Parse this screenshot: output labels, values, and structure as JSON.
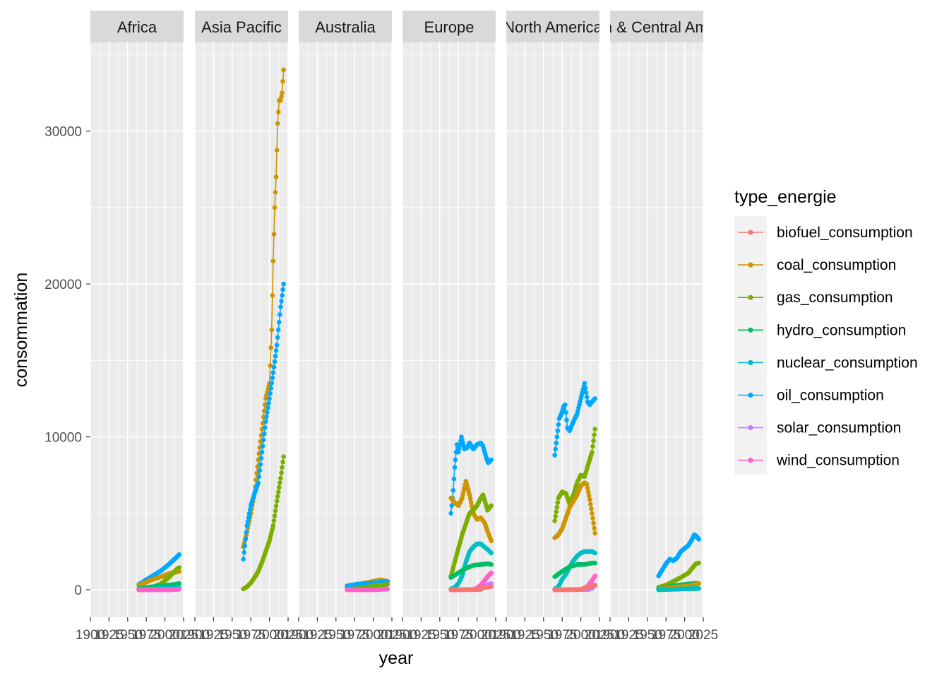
{
  "chart_data": {
    "type": "line",
    "facet_by": "region",
    "facets": [
      "Africa",
      "Asia Pacific",
      "Australia",
      "Europe",
      "North America",
      "South & Central America"
    ],
    "xlabel": "year",
    "ylabel": "consommation",
    "xlim": [
      1900,
      2025
    ],
    "ylim": [
      -1800,
      35800
    ],
    "x_ticks": [
      1900,
      1925,
      1950,
      1975,
      2000,
      2025
    ],
    "y_ticks": [
      0,
      10000,
      20000,
      30000
    ],
    "grid": true,
    "legend": {
      "title": "type_energie",
      "position": "right",
      "entries": [
        "biofuel_consumption",
        "coal_consumption",
        "gas_consumption",
        "hydro_consumption",
        "nuclear_consumption",
        "oil_consumption",
        "solar_consumption",
        "wind_consumption"
      ]
    },
    "colors": {
      "biofuel_consumption": "#F8766D",
      "coal_consumption": "#CD9600",
      "gas_consumption": "#7CAE00",
      "hydro_consumption": "#00BE67",
      "nuclear_consumption": "#00BFC4",
      "oil_consumption": "#00A9FF",
      "solar_consumption": "#C77CFF",
      "wind_consumption": "#FF61CC"
    },
    "series": [
      {
        "panel": "Africa",
        "name": "oil_consumption",
        "x": [
          1965,
          1975,
          1985,
          1995,
          2005,
          2015,
          2019
        ],
        "y": [
          350,
          650,
          950,
          1250,
          1650,
          2100,
          2300
        ]
      },
      {
        "panel": "Africa",
        "name": "coal_consumption",
        "x": [
          1965,
          1975,
          1985,
          1995,
          2005,
          2015,
          2019
        ],
        "y": [
          300,
          500,
          700,
          850,
          1050,
          1150,
          1200
        ]
      },
      {
        "panel": "Africa",
        "name": "gas_consumption",
        "x": [
          1965,
          1975,
          1985,
          1995,
          2005,
          2015,
          2019
        ],
        "y": [
          0,
          50,
          200,
          400,
          800,
          1300,
          1450
        ]
      },
      {
        "panel": "Africa",
        "name": "hydro_consumption",
        "x": [
          1965,
          1980,
          1995,
          2010,
          2019
        ],
        "y": [
          80,
          180,
          250,
          330,
          400
        ]
      },
      {
        "panel": "Africa",
        "name": "nuclear_consumption",
        "x": [
          1965,
          1985,
          2000,
          2019
        ],
        "y": [
          0,
          40,
          100,
          120
        ]
      },
      {
        "panel": "Africa",
        "name": "solar_consumption",
        "x": [
          1965,
          2010,
          2019
        ],
        "y": [
          0,
          0,
          40
        ]
      },
      {
        "panel": "Africa",
        "name": "wind_consumption",
        "x": [
          1965,
          2010,
          2019
        ],
        "y": [
          0,
          5,
          30
        ]
      },
      {
        "panel": "Asia Pacific",
        "name": "coal_consumption",
        "x": [
          1965,
          1970,
          1975,
          1980,
          1985,
          1990,
          1995,
          2000,
          2003,
          2005,
          2007,
          2009,
          2011,
          2013,
          2015,
          2017,
          2019
        ],
        "y": [
          2800,
          3800,
          5000,
          6300,
          8500,
          10500,
          12500,
          13500,
          17000,
          21500,
          25000,
          27000,
          30500,
          32000,
          32000,
          32500,
          34000
        ]
      },
      {
        "panel": "Asia Pacific",
        "name": "oil_consumption",
        "x": [
          1965,
          1970,
          1975,
          1980,
          1985,
          1990,
          1995,
          2000,
          2005,
          2010,
          2015,
          2019
        ],
        "y": [
          2000,
          4200,
          5500,
          6300,
          7000,
          9000,
          11000,
          12500,
          14200,
          16000,
          18500,
          20000
        ]
      },
      {
        "panel": "Asia Pacific",
        "name": "gas_consumption",
        "x": [
          1965,
          1970,
          1975,
          1980,
          1985,
          1990,
          1995,
          2000,
          2005,
          2010,
          2015,
          2019
        ],
        "y": [
          50,
          200,
          450,
          800,
          1200,
          1800,
          2500,
          3200,
          4200,
          5800,
          7300,
          8700
        ]
      },
      {
        "panel": "Australia",
        "name": "coal_consumption",
        "x": [
          1965,
          1980,
          1995,
          2010,
          2019
        ],
        "y": [
          250,
          350,
          500,
          650,
          550
        ]
      },
      {
        "panel": "Australia",
        "name": "oil_consumption",
        "x": [
          1965,
          1980,
          1995,
          2010,
          2019
        ],
        "y": [
          250,
          380,
          420,
          500,
          550
        ]
      },
      {
        "panel": "Australia",
        "name": "gas_consumption",
        "x": [
          1965,
          1980,
          1995,
          2010,
          2019
        ],
        "y": [
          0,
          100,
          200,
          300,
          350
        ]
      },
      {
        "panel": "Australia",
        "name": "hydro_consumption",
        "x": [
          1965,
          2019
        ],
        "y": [
          40,
          50
        ]
      },
      {
        "panel": "Australia",
        "name": "wind_consumption",
        "x": [
          1965,
          2005,
          2019
        ],
        "y": [
          0,
          0,
          60
        ]
      },
      {
        "panel": "Europe",
        "name": "oil_consumption",
        "x": [
          1965,
          1968,
          1970,
          1973,
          1975,
          1979,
          1983,
          1987,
          1990,
          1995,
          2000,
          2005,
          2008,
          2012,
          2015,
          2019
        ],
        "y": [
          5000,
          6500,
          8000,
          9500,
          9000,
          10000,
          9200,
          9300,
          9600,
          9200,
          9500,
          9600,
          9400,
          8700,
          8300,
          8500
        ]
      },
      {
        "panel": "Europe",
        "name": "coal_consumption",
        "x": [
          1965,
          1970,
          1975,
          1980,
          1985,
          1990,
          1995,
          2000,
          2005,
          2010,
          2015,
          2019
        ],
        "y": [
          6000,
          5700,
          5500,
          6000,
          7100,
          6200,
          5000,
          4600,
          4700,
          4400,
          3700,
          3200
        ]
      },
      {
        "panel": "Europe",
        "name": "gas_consumption",
        "x": [
          1965,
          1970,
          1975,
          1980,
          1985,
          1990,
          1995,
          2000,
          2005,
          2008,
          2010,
          2014,
          2019
        ],
        "y": [
          900,
          1800,
          2700,
          3600,
          4300,
          5000,
          5200,
          5500,
          6000,
          6200,
          5900,
          5200,
          5500
        ]
      },
      {
        "panel": "Europe",
        "name": "nuclear_consumption",
        "x": [
          1965,
          1970,
          1975,
          1980,
          1985,
          1990,
          1995,
          2000,
          2005,
          2010,
          2015,
          2019
        ],
        "y": [
          50,
          150,
          400,
          900,
          1800,
          2500,
          2800,
          3000,
          3000,
          2800,
          2600,
          2400
        ]
      },
      {
        "panel": "Europe",
        "name": "hydro_consumption",
        "x": [
          1965,
          1975,
          1985,
          1995,
          2005,
          2015,
          2019
        ],
        "y": [
          800,
          1100,
          1400,
          1600,
          1650,
          1700,
          1650
        ]
      },
      {
        "panel": "Europe",
        "name": "wind_consumption",
        "x": [
          1965,
          1995,
          2000,
          2005,
          2010,
          2015,
          2019
        ],
        "y": [
          0,
          20,
          100,
          300,
          600,
          900,
          1100
        ]
      },
      {
        "panel": "Europe",
        "name": "solar_consumption",
        "x": [
          1965,
          2005,
          2010,
          2015,
          2019
        ],
        "y": [
          0,
          20,
          200,
          350,
          400
        ]
      },
      {
        "panel": "Europe",
        "name": "biofuel_consumption",
        "x": [
          1965,
          2000,
          2010,
          2019
        ],
        "y": [
          0,
          10,
          150,
          200
        ]
      },
      {
        "panel": "North America",
        "name": "oil_consumption",
        "x": [
          1965,
          1968,
          1971,
          1974,
          1977,
          1979,
          1982,
          1985,
          1990,
          1995,
          2000,
          2005,
          2009,
          2012,
          2015,
          2019
        ],
        "y": [
          8800,
          10000,
          11200,
          11500,
          12000,
          12100,
          10600,
          10400,
          11000,
          11500,
          12500,
          13500,
          12300,
          12100,
          12300,
          12500
        ]
      },
      {
        "panel": "North America",
        "name": "gas_consumption",
        "x": [
          1965,
          1970,
          1975,
          1980,
          1985,
          1990,
          1995,
          2000,
          2005,
          2010,
          2015,
          2019
        ],
        "y": [
          4500,
          6000,
          6400,
          6300,
          5600,
          6200,
          7000,
          7500,
          7400,
          8200,
          9000,
          10500
        ]
      },
      {
        "panel": "North America",
        "name": "coal_consumption",
        "x": [
          1965,
          1970,
          1975,
          1980,
          1985,
          1990,
          1995,
          2000,
          2005,
          2008,
          2012,
          2015,
          2019
        ],
        "y": [
          3400,
          3600,
          4000,
          4700,
          5400,
          5800,
          6200,
          6800,
          7000,
          6900,
          5900,
          5000,
          3700
        ]
      },
      {
        "panel": "North America",
        "name": "nuclear_consumption",
        "x": [
          1965,
          1970,
          1975,
          1980,
          1985,
          1990,
          1995,
          2000,
          2005,
          2010,
          2015,
          2019
        ],
        "y": [
          50,
          200,
          700,
          1000,
          1500,
          1900,
          2200,
          2400,
          2500,
          2500,
          2500,
          2400
        ]
      },
      {
        "panel": "North America",
        "name": "hydro_consumption",
        "x": [
          1965,
          1975,
          1985,
          1995,
          2005,
          2015,
          2019
        ],
        "y": [
          850,
          1200,
          1500,
          1650,
          1650,
          1750,
          1750
        ]
      },
      {
        "panel": "North America",
        "name": "wind_consumption",
        "x": [
          1965,
          2000,
          2005,
          2010,
          2015,
          2019
        ],
        "y": [
          0,
          20,
          60,
          300,
          600,
          900
        ]
      },
      {
        "panel": "North America",
        "name": "solar_consumption",
        "x": [
          1965,
          2010,
          2015,
          2019
        ],
        "y": [
          0,
          10,
          100,
          300
        ]
      },
      {
        "panel": "North America",
        "name": "biofuel_consumption",
        "x": [
          1965,
          2000,
          2010,
          2019
        ],
        "y": [
          0,
          20,
          200,
          300
        ]
      },
      {
        "panel": "South & Central America",
        "name": "oil_consumption",
        "x": [
          1965,
          1970,
          1975,
          1980,
          1985,
          1990,
          1995,
          2000,
          2005,
          2010,
          2013,
          2016,
          2019
        ],
        "y": [
          900,
          1300,
          1700,
          2000,
          1900,
          2100,
          2500,
          2700,
          2900,
          3300,
          3600,
          3500,
          3300
        ]
      },
      {
        "panel": "South & Central America",
        "name": "gas_consumption",
        "x": [
          1965,
          1975,
          1985,
          1995,
          2005,
          2010,
          2015,
          2019
        ],
        "y": [
          150,
          300,
          550,
          800,
          1100,
          1400,
          1700,
          1750
        ]
      },
      {
        "panel": "South & Central America",
        "name": "hydro_consumption",
        "x": [
          1965,
          1975,
          1985,
          1995,
          2005,
          2015,
          2019
        ],
        "y": [
          80,
          150,
          250,
          320,
          380,
          420,
          400
        ]
      },
      {
        "panel": "South & Central America",
        "name": "coal_consumption",
        "x": [
          1965,
          1975,
          1985,
          1995,
          2005,
          2015,
          2019
        ],
        "y": [
          50,
          80,
          150,
          200,
          250,
          350,
          400
        ]
      },
      {
        "panel": "South & Central America",
        "name": "nuclear_consumption",
        "x": [
          1965,
          1985,
          2000,
          2019
        ],
        "y": [
          0,
          30,
          60,
          80
        ]
      }
    ]
  }
}
